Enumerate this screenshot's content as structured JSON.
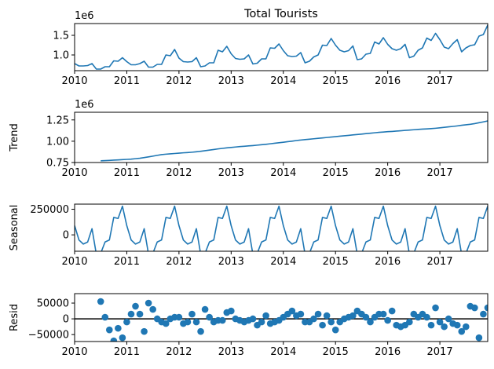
{
  "chart_data": [
    {
      "type": "line",
      "title": "Total Tourists",
      "ylabel": "",
      "offset_text": "1e6",
      "xlim": [
        2010.0,
        2017.917
      ],
      "ylim": [
        600000,
        1800000
      ],
      "xticks": [
        "2010",
        "2011",
        "2012",
        "2013",
        "2014",
        "2015",
        "2016",
        "2017"
      ],
      "yticks": [
        1000000,
        1500000
      ],
      "ytick_labels": [
        "1.0",
        "1.5"
      ],
      "color": "#1f77b4",
      "x_start": "2010-01",
      "x_step": "1 month",
      "values": [
        780000,
        720000,
        720000,
        730000,
        780000,
        640000,
        640000,
        700000,
        700000,
        850000,
        840000,
        930000,
        830000,
        750000,
        750000,
        780000,
        840000,
        690000,
        690000,
        760000,
        760000,
        1000000,
        980000,
        1140000,
        920000,
        830000,
        820000,
        830000,
        930000,
        700000,
        720000,
        800000,
        800000,
        1120000,
        1080000,
        1220000,
        1030000,
        910000,
        890000,
        900000,
        1000000,
        770000,
        790000,
        900000,
        900000,
        1180000,
        1170000,
        1280000,
        1110000,
        980000,
        960000,
        970000,
        1060000,
        800000,
        840000,
        950000,
        1000000,
        1250000,
        1240000,
        1420000,
        1250000,
        1120000,
        1080000,
        1110000,
        1230000,
        880000,
        900000,
        1020000,
        1040000,
        1330000,
        1280000,
        1440000,
        1270000,
        1160000,
        1120000,
        1160000,
        1270000,
        930000,
        970000,
        1120000,
        1180000,
        1430000,
        1370000,
        1550000,
        1390000,
        1200000,
        1160000,
        1290000,
        1390000,
        1080000,
        1180000,
        1240000,
        1260000,
        1480000,
        1520000,
        1760000
      ]
    },
    {
      "type": "line",
      "title": "",
      "ylabel": "Trend",
      "offset_text": "1e6",
      "xlim": [
        2010.0,
        2017.917
      ],
      "ylim": [
        750000,
        1340000
      ],
      "xticks": [
        "2010",
        "2011",
        "2012",
        "2013",
        "2014",
        "2015",
        "2016",
        "2017"
      ],
      "yticks": [
        750000,
        1000000,
        1250000
      ],
      "ytick_labels": [
        "0.75",
        "1.00",
        "1.25"
      ],
      "color": "#1f77b4",
      "x_start": "2010-07",
      "x_step": "1 month",
      "values": [
        770000,
        772000,
        775000,
        778000,
        781000,
        784000,
        787000,
        790000,
        795000,
        800000,
        808000,
        816000,
        825000,
        834000,
        843000,
        848000,
        852000,
        856000,
        860000,
        864000,
        867000,
        871000,
        876000,
        882000,
        889000,
        896000,
        903000,
        910000,
        916000,
        922000,
        927000,
        932000,
        937000,
        941000,
        945000,
        949000,
        954000,
        959000,
        964000,
        970000,
        976000,
        982000,
        988000,
        995000,
        1001000,
        1008000,
        1014000,
        1019000,
        1024000,
        1029000,
        1034000,
        1039000,
        1044000,
        1049000,
        1054000,
        1059000,
        1064000,
        1069000,
        1074000,
        1079000,
        1084000,
        1089000,
        1094000,
        1099000,
        1104000,
        1108000,
        1112000,
        1115000,
        1119000,
        1123000,
        1127000,
        1131000,
        1135000,
        1139000,
        1142000,
        1145000,
        1148000,
        1152000,
        1157000,
        1163000,
        1169000,
        1174000,
        1180000,
        1187000,
        1193000,
        1199000,
        1207000,
        1217000,
        1227000,
        1238000,
        1249000,
        1258000,
        1262000,
        1268000,
        1281000
      ]
    },
    {
      "type": "line",
      "title": "",
      "ylabel": "Seasonal",
      "xlim": [
        2010.0,
        2017.917
      ],
      "ylim": [
        -160000,
        300000
      ],
      "xticks": [
        "2010",
        "2011",
        "2012",
        "2013",
        "2014",
        "2015",
        "2016",
        "2017"
      ],
      "yticks": [
        0,
        250000
      ],
      "ytick_labels": [
        "0",
        "250000"
      ],
      "color": "#1f77b4",
      "x_start": "2010-01",
      "x_step": "1 month",
      "pattern_note": "",
      "values": [
        90000,
        -50000,
        -90000,
        -70000,
        60000,
        -190000,
        -180000,
        -70000,
        -50000,
        170000,
        160000,
        280000,
        90000,
        -50000,
        -90000,
        -70000,
        60000,
        -190000,
        -180000,
        -70000,
        -50000,
        170000,
        160000,
        280000,
        90000,
        -50000,
        -90000,
        -70000,
        60000,
        -190000,
        -180000,
        -70000,
        -50000,
        170000,
        160000,
        280000,
        90000,
        -50000,
        -90000,
        -70000,
        60000,
        -190000,
        -180000,
        -70000,
        -50000,
        170000,
        160000,
        280000,
        90000,
        -50000,
        -90000,
        -70000,
        60000,
        -190000,
        -180000,
        -70000,
        -50000,
        170000,
        160000,
        280000,
        90000,
        -50000,
        -90000,
        -70000,
        60000,
        -190000,
        -180000,
        -70000,
        -50000,
        170000,
        160000,
        280000,
        90000,
        -50000,
        -90000,
        -70000,
        60000,
        -190000,
        -180000,
        -70000,
        -50000,
        170000,
        160000,
        280000,
        90000,
        -50000,
        -90000,
        -70000,
        60000,
        -190000,
        -180000,
        -70000,
        -50000,
        170000,
        160000,
        280000
      ]
    },
    {
      "type": "scatter",
      "title": "",
      "ylabel": "Resid",
      "xlim": [
        2010.0,
        2017.917
      ],
      "ylim": [
        -72000,
        80000
      ],
      "xticks": [
        "2010",
        "2011",
        "2012",
        "2013",
        "2014",
        "2015",
        "2016",
        "2017"
      ],
      "yticks": [
        -50000,
        0,
        50000
      ],
      "ytick_labels": [
        "−50000",
        "0",
        "50000"
      ],
      "color": "#1f77b4",
      "zero_line": true,
      "x_start": "2010-07",
      "x_step": "1 month",
      "values": [
        55000,
        5000,
        -35000,
        -70000,
        -30000,
        -60000,
        -10000,
        15000,
        40000,
        15000,
        -40000,
        50000,
        30000,
        0,
        -10000,
        -15000,
        0,
        5000,
        5000,
        -15000,
        -10000,
        15000,
        -10000,
        -40000,
        30000,
        5000,
        -10000,
        -5000,
        -5000,
        20000,
        25000,
        0,
        -5000,
        -10000,
        -5000,
        0,
        -20000,
        -10000,
        10000,
        -15000,
        -10000,
        -5000,
        5000,
        15000,
        25000,
        10000,
        15000,
        -10000,
        -10000,
        0,
        15000,
        -20000,
        10000,
        -10000,
        -35000,
        -10000,
        0,
        5000,
        10000,
        25000,
        15000,
        5000,
        -10000,
        5000,
        15000,
        15000,
        -5000,
        25000,
        -20000,
        -25000,
        -20000,
        -10000,
        15000,
        5000,
        15000,
        5000,
        -20000,
        35000,
        -10000,
        -25000,
        0,
        -15000,
        -20000,
        -40000,
        -25000,
        40000,
        35000,
        -60000,
        15000,
        35000,
        -45000,
        -50000,
        75000,
        35000,
        -25000
      ]
    }
  ]
}
